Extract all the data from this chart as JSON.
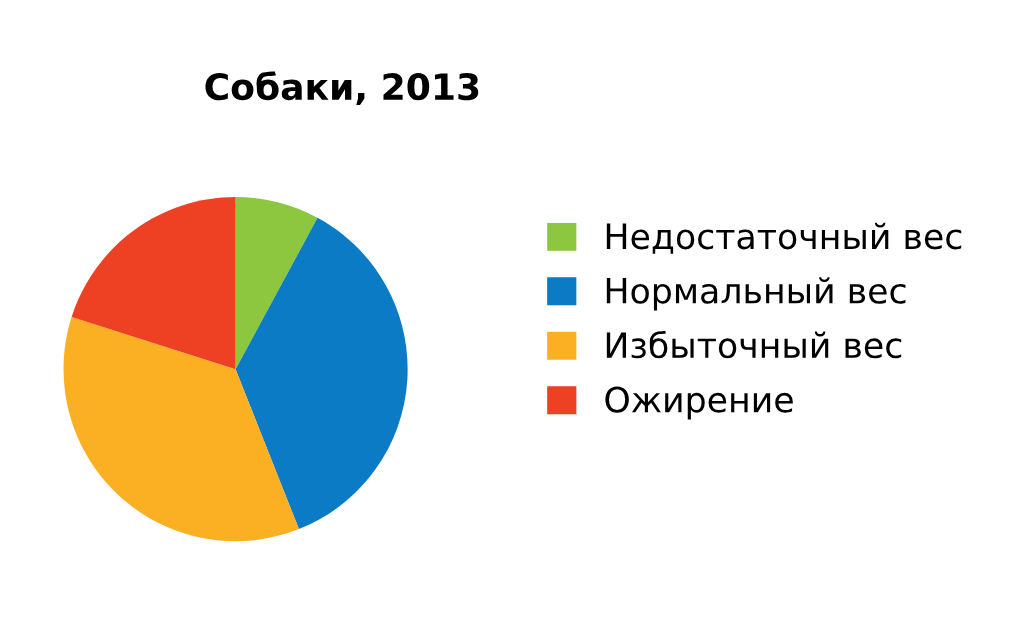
{
  "chart_data": {
    "type": "pie",
    "title": "Собаки, 2013",
    "categories": [
      "Недостаточный вес",
      "Нормальный вес",
      "Избыточный вес",
      "Ожирение"
    ],
    "values": [
      7.9,
      36.1,
      35.9,
      20.1
    ],
    "colors": [
      "#8dc63f",
      "#0a7bc4",
      "#fbb024",
      "#ee4124"
    ],
    "legend": "right"
  }
}
